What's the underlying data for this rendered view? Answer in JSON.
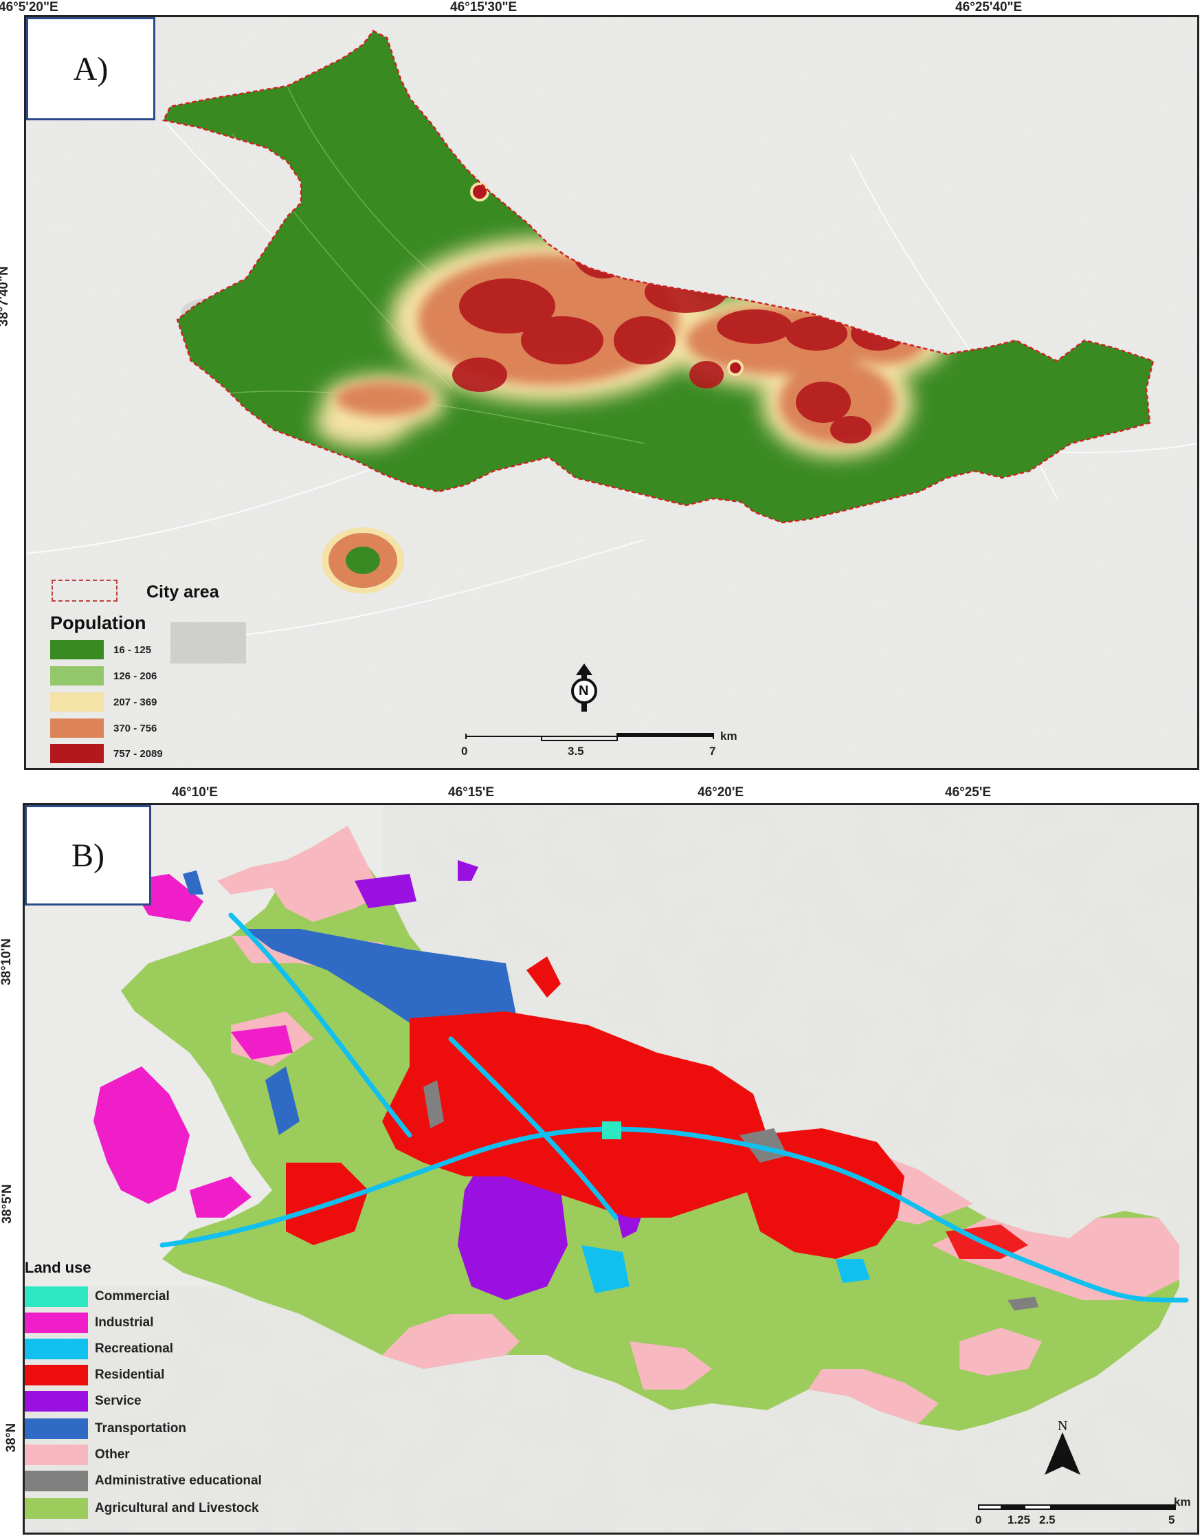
{
  "panel_a": {
    "tag": "A)",
    "coords_top": [
      "46°5'20\"E",
      "46°15'30\"E",
      "46°25'40\"E"
    ],
    "coord_left": "38°7'40\"N",
    "city_area_label": "City area",
    "legend_title": "Population",
    "legend_items": [
      {
        "label": "16 - 125",
        "color": "#3a8a22"
      },
      {
        "label": "126 - 206",
        "color": "#93c86a"
      },
      {
        "label": "207 - 369",
        "color": "#f5e2a6"
      },
      {
        "label": "370 - 756",
        "color": "#dc8358"
      },
      {
        "label": "757 - 2089",
        "color": "#b3191c"
      }
    ],
    "scale_labels": [
      "0",
      "3.5",
      "7"
    ],
    "scale_unit": "km",
    "north_label": "N"
  },
  "panel_b": {
    "tag": "B)",
    "coords_top": [
      "46°10'E",
      "46°15'E",
      "46°20'E",
      "46°25'E"
    ],
    "coords_left": [
      "38°10'N",
      "38°5'N",
      "38°N"
    ],
    "legend_title": "Land use",
    "legend_items": [
      {
        "label": "Commercial",
        "color": "#2ee8c4"
      },
      {
        "label": "Industrial",
        "color": "#f01ec8"
      },
      {
        "label": "Recreational",
        "color": "#12c0f0"
      },
      {
        "label": "Residential",
        "color": "#ee0d0d"
      },
      {
        "label": "Service",
        "color": "#9a10e0"
      },
      {
        "label": "Transportation",
        "color": "#2f6bc4"
      },
      {
        "label": "Other",
        "color": "#f8b8c0"
      },
      {
        "label": "Administrative educational",
        "color": "#808080"
      },
      {
        "label": "Agricultural and Livestock",
        "color": "#9ccc5c"
      }
    ],
    "scale_labels": [
      "0",
      "1.25",
      "2.5",
      "5"
    ],
    "scale_unit": "km",
    "north_label": "N"
  }
}
